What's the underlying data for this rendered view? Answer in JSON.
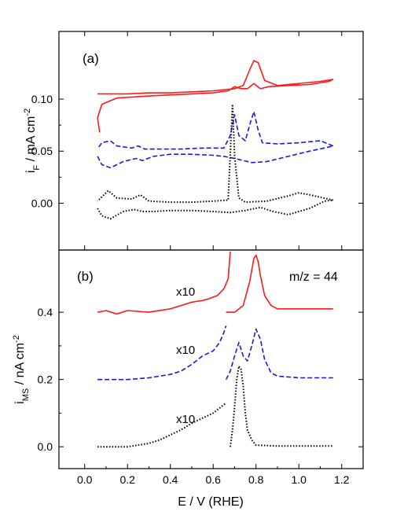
{
  "chart_data": {
    "type": "line",
    "xlabel": "E / V (RHE)",
    "xlim": [
      -0.12,
      1.3
    ],
    "xticks": [
      0.0,
      0.2,
      0.4,
      0.6,
      0.8,
      1.0,
      1.2
    ],
    "xtick_labels": [
      "0.0",
      "0.2",
      "0.4",
      "0.6",
      "0.8",
      "1.0",
      "1.2"
    ],
    "colors": {
      "red": "#ff1a1a",
      "blue": "#1a1adc",
      "black": "#000000"
    },
    "panels": [
      {
        "panel_label": "(a)",
        "ylabel_main": "i",
        "ylabel_sub": "F",
        "ylabel_rest": " / mA cm",
        "ylabel_sup": "-2",
        "ylim": [
          -0.045,
          0.165
        ],
        "yticks": [
          0.0,
          0.05,
          0.1
        ],
        "ytick_labels": [
          "0.00",
          "0.05",
          "0.10"
        ],
        "series": [
          {
            "color": "red",
            "style": "solid",
            "x": [
              0.07,
              0.06,
              0.08,
              0.15,
              0.3,
              0.5,
              0.6,
              0.67,
              0.7,
              0.73,
              0.76,
              0.79,
              0.82,
              0.86,
              0.95,
              1.05,
              1.14,
              1.16
            ],
            "y": [
              0.068,
              0.082,
              0.095,
              0.101,
              0.103,
              0.105,
              0.106,
              0.108,
              0.112,
              0.11,
              0.11,
              0.115,
              0.11,
              0.112,
              0.113,
              0.114,
              0.117,
              0.119
            ],
            "x2": [
              1.16,
              1.1,
              1.0,
              0.9,
              0.84,
              0.81,
              0.79,
              0.77,
              0.74,
              0.7,
              0.6,
              0.5,
              0.4,
              0.3,
              0.2,
              0.1,
              0.06
            ],
            "y2": [
              0.119,
              0.117,
              0.115,
              0.113,
              0.118,
              0.135,
              0.137,
              0.128,
              0.113,
              0.11,
              0.108,
              0.107,
              0.106,
              0.106,
              0.105,
              0.105,
              0.105
            ]
          },
          {
            "color": "blue",
            "style": "dashed",
            "x": [
              0.06,
              0.08,
              0.12,
              0.18,
              0.24,
              0.27,
              0.32,
              0.4,
              0.5,
              0.6,
              0.65,
              0.7,
              0.78,
              0.85,
              0.95,
              1.05,
              1.12,
              1.16
            ],
            "y": [
              0.045,
              0.037,
              0.034,
              0.04,
              0.043,
              0.041,
              0.045,
              0.047,
              0.047,
              0.046,
              0.045,
              0.043,
              0.039,
              0.04,
              0.045,
              0.05,
              0.053,
              0.055
            ],
            "x2": [
              1.16,
              1.1,
              1.0,
              0.9,
              0.83,
              0.81,
              0.79,
              0.77,
              0.75,
              0.72,
              0.7,
              0.68,
              0.65,
              0.55,
              0.45,
              0.35,
              0.28,
              0.25,
              0.22,
              0.15,
              0.12,
              0.08,
              0.06
            ],
            "y2": [
              0.055,
              0.06,
              0.058,
              0.057,
              0.058,
              0.07,
              0.088,
              0.075,
              0.06,
              0.065,
              0.085,
              0.065,
              0.053,
              0.053,
              0.052,
              0.052,
              0.052,
              0.055,
              0.053,
              0.055,
              0.06,
              0.058,
              0.052
            ]
          },
          {
            "color": "black",
            "style": "dotted",
            "x": [
              0.06,
              0.08,
              0.12,
              0.18,
              0.23,
              0.27,
              0.32,
              0.4,
              0.5,
              0.6,
              0.68,
              0.75,
              0.82,
              0.88,
              0.95,
              1.05,
              1.12,
              1.16
            ],
            "y": [
              -0.005,
              -0.012,
              -0.015,
              -0.008,
              -0.006,
              -0.008,
              -0.008,
              -0.007,
              -0.007,
              -0.008,
              -0.009,
              -0.007,
              -0.004,
              -0.008,
              -0.011,
              -0.005,
              0.002,
              0.003
            ],
            "x2": [
              1.16,
              1.05,
              1.0,
              0.95,
              0.85,
              0.75,
              0.72,
              0.7,
              0.69,
              0.67,
              0.6,
              0.5,
              0.4,
              0.3,
              0.26,
              0.22,
              0.15,
              0.11,
              0.08,
              0.06
            ],
            "y2": [
              0.003,
              0.008,
              0.01,
              0.007,
              0.002,
              0.001,
              0.005,
              0.045,
              0.095,
              0.003,
              0.002,
              0.001,
              0.001,
              0.002,
              0.008,
              0.004,
              0.005,
              0.012,
              0.006,
              0.002
            ]
          }
        ]
      },
      {
        "panel_label": "(b)",
        "annotation": "m/z = 44",
        "ylabel_main": "i",
        "ylabel_sub": "MS",
        "ylabel_rest": " / nA cm",
        "ylabel_sup": "-2",
        "ylim": [
          -0.065,
          0.585
        ],
        "yticks": [
          0.0,
          0.2,
          0.4
        ],
        "ytick_labels": [
          "0.0",
          "0.2",
          "0.4"
        ],
        "multiplier_labels": [
          "x10",
          "x10",
          "x10"
        ],
        "series": [
          {
            "color": "red",
            "style": "solid",
            "x": [
              0.06,
              0.1,
              0.15,
              0.2,
              0.3,
              0.4,
              0.45,
              0.5,
              0.55,
              0.58,
              0.62,
              0.65,
              0.67,
              0.68
            ],
            "y": [
              0.4,
              0.405,
              0.395,
              0.405,
              0.4,
              0.41,
              0.42,
              0.43,
              0.435,
              0.44,
              0.45,
              0.47,
              0.5,
              0.58
            ],
            "x2": [
              0.66,
              0.7,
              0.74,
              0.77,
              0.79,
              0.8,
              0.81,
              0.82,
              0.84,
              0.87,
              0.9,
              1.0,
              1.1,
              1.16
            ],
            "y2": [
              0.4,
              0.4,
              0.42,
              0.49,
              0.56,
              0.57,
              0.55,
              0.51,
              0.45,
              0.42,
              0.41,
              0.41,
              0.41,
              0.41
            ]
          },
          {
            "color": "blue",
            "style": "dashed",
            "x": [
              0.06,
              0.2,
              0.3,
              0.4,
              0.45,
              0.5,
              0.55,
              0.6,
              0.63,
              0.65,
              0.66
            ],
            "y": [
              0.2,
              0.2,
              0.205,
              0.215,
              0.225,
              0.245,
              0.27,
              0.285,
              0.31,
              0.34,
              0.36
            ],
            "x2": [
              0.66,
              0.68,
              0.7,
              0.72,
              0.74,
              0.76,
              0.78,
              0.8,
              0.82,
              0.84,
              0.87,
              0.9,
              1.0,
              1.1,
              1.16
            ],
            "y2": [
              0.2,
              0.225,
              0.27,
              0.31,
              0.27,
              0.255,
              0.3,
              0.35,
              0.32,
              0.26,
              0.22,
              0.21,
              0.205,
              0.205,
              0.205
            ]
          },
          {
            "color": "black",
            "style": "dotted",
            "x": [
              0.06,
              0.2,
              0.3,
              0.35,
              0.4,
              0.45,
              0.5,
              0.55,
              0.6,
              0.64,
              0.66
            ],
            "y": [
              0.0,
              0.0,
              0.01,
              0.02,
              0.035,
              0.05,
              0.07,
              0.085,
              0.1,
              0.12,
              0.13
            ],
            "x2": [
              0.68,
              0.69,
              0.7,
              0.71,
              0.72,
              0.73,
              0.74,
              0.75,
              0.76,
              0.78,
              0.8,
              0.9,
              1.0,
              1.1,
              1.16
            ],
            "y2": [
              0.0,
              0.05,
              0.12,
              0.2,
              0.24,
              0.23,
              0.18,
              0.1,
              0.05,
              0.02,
              0.005,
              0.002,
              0.002,
              0.002,
              0.002
            ]
          }
        ]
      }
    ]
  }
}
